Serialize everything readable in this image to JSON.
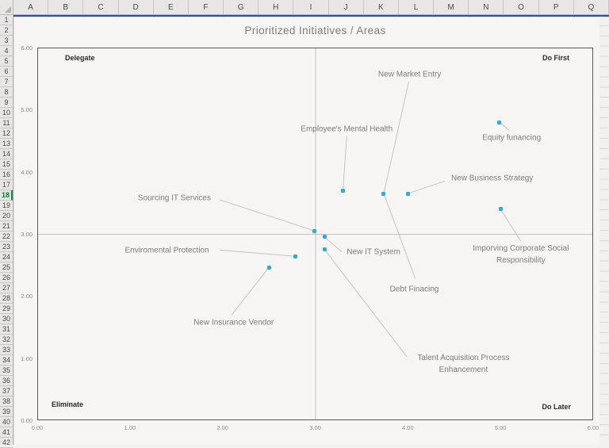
{
  "spreadsheet": {
    "column_headers": [
      "A",
      "B",
      "C",
      "D",
      "E",
      "F",
      "G",
      "H",
      "I",
      "J",
      "K",
      "L",
      "M",
      "N",
      "O",
      "P",
      "Q"
    ],
    "row_count": 42,
    "selected_row": 18
  },
  "colors": {
    "marker": "#22b1dd",
    "leader_line": "#c4c3c1",
    "plot_border": "#5a5a5a",
    "quadrant_line": "#c2c1bf",
    "pane_line": "#2a4db8",
    "selected_row_green": "#21814e",
    "label_text": "#7d7c7a",
    "title_text": "#7f7e7c"
  },
  "chart_data": {
    "type": "scatter",
    "title": "Prioritized Initiatives / Areas",
    "xlim": [
      0,
      6
    ],
    "ylim": [
      0,
      6
    ],
    "x_ticks": [
      "0.00",
      "1.00",
      "2.00",
      "3.00",
      "4.00",
      "5.00",
      "6.00"
    ],
    "y_ticks": [
      "0.00",
      "1.00",
      "2.00",
      "3.00",
      "4.00",
      "5.00",
      "6.00"
    ],
    "grid": false,
    "dividers": {
      "x": 3.0,
      "y": 3.0
    },
    "quadrants": {
      "top_left": "Delegate",
      "top_right": "Do First",
      "bottom_left": "Eliminate",
      "bottom_right": "Do Later"
    },
    "points": [
      {
        "label": "New Market Entry",
        "x": 3.74,
        "y": 3.65,
        "label_pos": [
          4.02,
          5.57
        ],
        "leader_end": [
          4.01,
          5.45
        ],
        "wrap": false
      },
      {
        "label": "Employee's Mental Health",
        "x": 3.3,
        "y": 3.7,
        "label_pos": [
          3.34,
          4.69
        ],
        "leader_end": [
          3.34,
          4.57
        ],
        "wrap": false
      },
      {
        "label": "Equity funancing",
        "x": 4.99,
        "y": 4.8,
        "label_pos": [
          5.12,
          4.54
        ],
        "leader_end": [
          5.09,
          4.67
        ],
        "wrap": false
      },
      {
        "label": "New Business Strategy",
        "x": 4.0,
        "y": 3.65,
        "label_pos": [
          4.91,
          3.89
        ],
        "leader_end": [
          4.4,
          3.85
        ],
        "wrap": false
      },
      {
        "label": "Sourcing IT Services",
        "x": 2.99,
        "y": 3.05,
        "label_pos": [
          1.48,
          3.57
        ],
        "leader_end": [
          1.97,
          3.55
        ],
        "wrap": false
      },
      {
        "label": "New IT System",
        "x": 3.1,
        "y": 2.95,
        "label_pos": [
          3.63,
          2.71
        ],
        "leader_end": [
          3.29,
          2.71
        ],
        "wrap": false
      },
      {
        "label": "Debt Finacing",
        "x": 3.74,
        "y": 3.65,
        "label_pos": [
          4.07,
          2.11
        ],
        "leader_end": [
          4.08,
          2.28
        ],
        "wrap": false
      },
      {
        "label": "Imporving Corporate Social Responsibility",
        "x": 5.0,
        "y": 3.4,
        "label_pos": [
          5.22,
          2.67
        ],
        "leader_end": [
          5.22,
          2.88
        ],
        "wrap": true
      },
      {
        "label": "Talent Acquisition Process Enhancement",
        "x": 3.1,
        "y": 2.75,
        "label_pos": [
          4.6,
          0.91
        ],
        "leader_end": [
          3.99,
          1.02
        ],
        "wrap": true
      },
      {
        "label": "Enviromental Protection",
        "x": 2.79,
        "y": 2.64,
        "label_pos": [
          1.4,
          2.73
        ],
        "leader_end": [
          1.97,
          2.74
        ],
        "wrap": false
      },
      {
        "label": "New Insurance Vendor",
        "x": 2.5,
        "y": 2.46,
        "label_pos": [
          2.12,
          1.57
        ],
        "leader_end": [
          2.1,
          1.7
        ],
        "wrap": false
      }
    ]
  }
}
